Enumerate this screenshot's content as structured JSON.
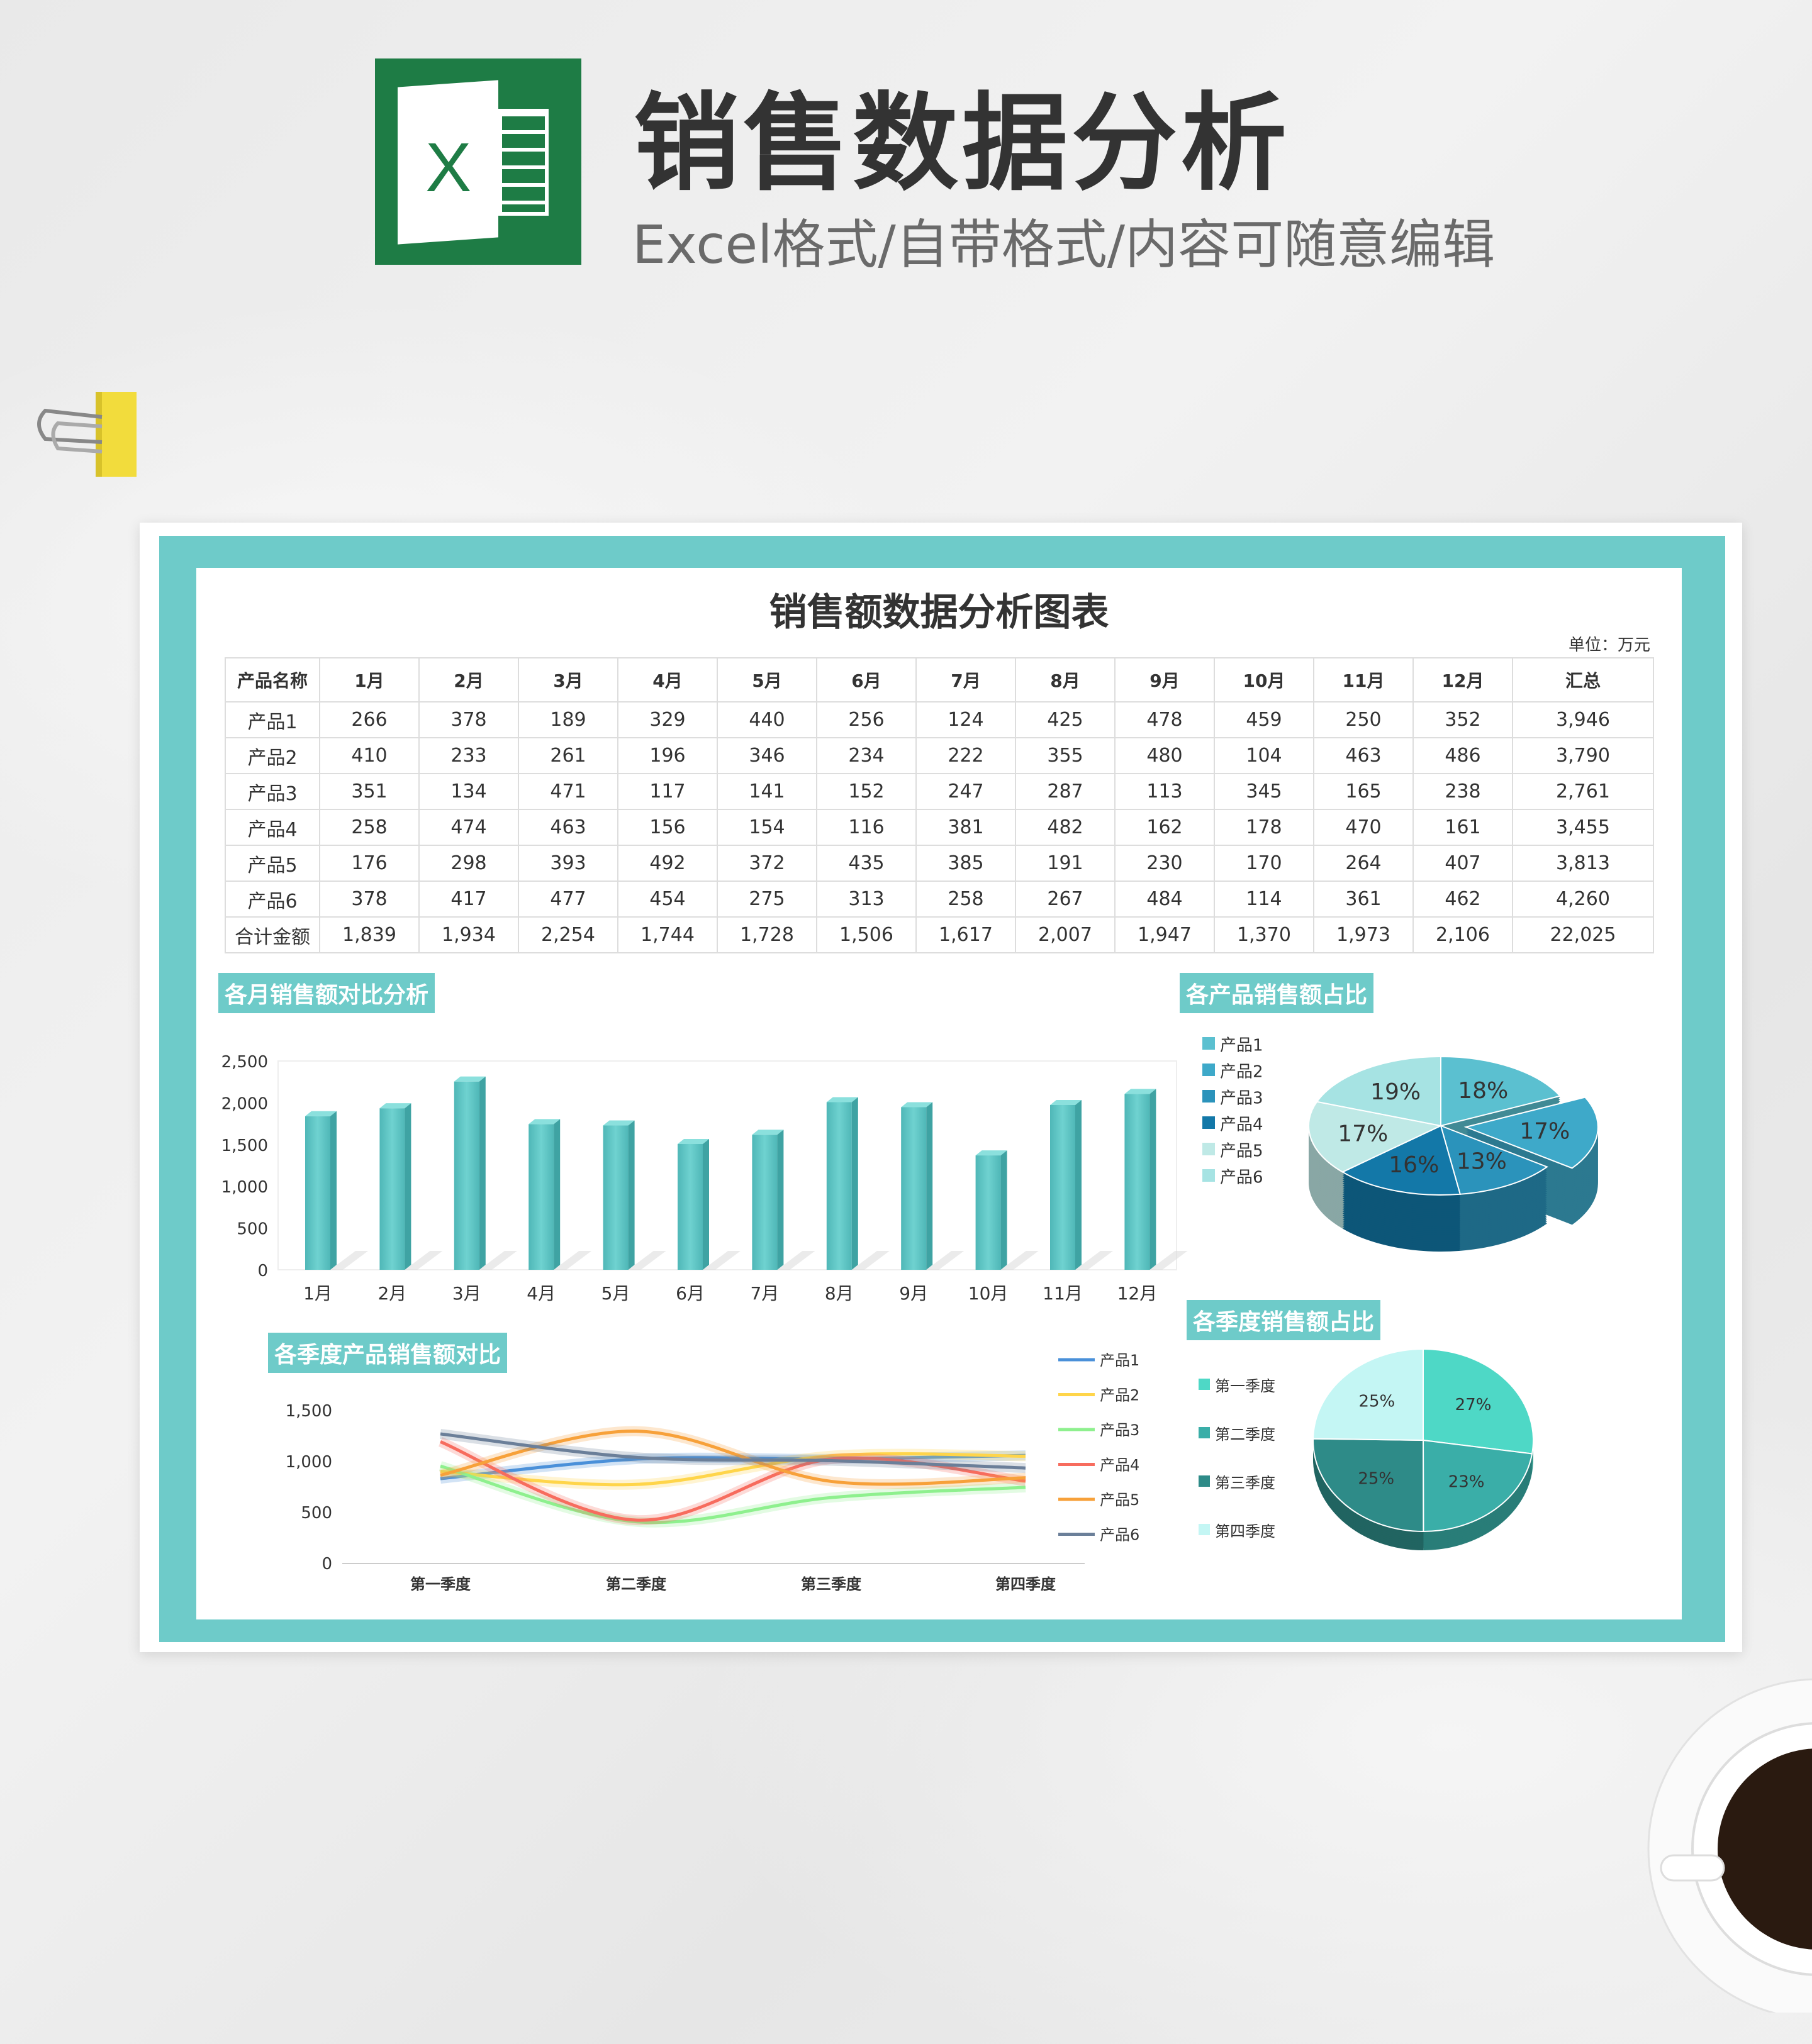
{
  "header": {
    "title": "销售数据分析",
    "subtitle": "Excel格式/自带格式/内容可随意编辑",
    "logo_letter": "X"
  },
  "sheet": {
    "title": "销售额数据分析图表",
    "unit": "单位：万元",
    "columns": [
      "产品名称",
      "1月",
      "2月",
      "3月",
      "4月",
      "5月",
      "6月",
      "7月",
      "8月",
      "9月",
      "10月",
      "11月",
      "12月",
      "汇总"
    ],
    "rows": [
      [
        "产品1",
        "266",
        "378",
        "189",
        "329",
        "440",
        "256",
        "124",
        "425",
        "478",
        "459",
        "250",
        "352",
        "3,946"
      ],
      [
        "产品2",
        "410",
        "233",
        "261",
        "196",
        "346",
        "234",
        "222",
        "355",
        "480",
        "104",
        "463",
        "486",
        "3,790"
      ],
      [
        "产品3",
        "351",
        "134",
        "471",
        "117",
        "141",
        "152",
        "247",
        "287",
        "113",
        "345",
        "165",
        "238",
        "2,761"
      ],
      [
        "产品4",
        "258",
        "474",
        "463",
        "156",
        "154",
        "116",
        "381",
        "482",
        "162",
        "178",
        "470",
        "161",
        "3,455"
      ],
      [
        "产品5",
        "176",
        "298",
        "393",
        "492",
        "372",
        "435",
        "385",
        "191",
        "230",
        "170",
        "264",
        "407",
        "3,813"
      ],
      [
        "产品6",
        "378",
        "417",
        "477",
        "454",
        "275",
        "313",
        "258",
        "267",
        "484",
        "114",
        "361",
        "462",
        "4,260"
      ],
      [
        "合计金额",
        "1,839",
        "1,934",
        "2,254",
        "1,744",
        "1,728",
        "1,506",
        "1,617",
        "2,007",
        "1,947",
        "1,370",
        "1,973",
        "2,106",
        "22,025"
      ]
    ]
  },
  "colors": {
    "accent": "#6ecbc9",
    "bar": "#5cc4c4"
  },
  "chart_data": [
    {
      "type": "bar",
      "title": "各月销售额对比分析",
      "categories": [
        "1月",
        "2月",
        "3月",
        "4月",
        "5月",
        "6月",
        "7月",
        "8月",
        "9月",
        "10月",
        "11月",
        "12月"
      ],
      "values": [
        1839,
        1934,
        2254,
        1744,
        1728,
        1506,
        1617,
        2007,
        1947,
        1370,
        1973,
        2106
      ],
      "ylim": [
        0,
        2500
      ],
      "yticks": [
        "0",
        "500",
        "1,000",
        "1,500",
        "2,000",
        "2,500"
      ],
      "style": "3d-column"
    },
    {
      "type": "pie",
      "title": "各产品销售额占比",
      "categories": [
        "产品1",
        "产品2",
        "产品3",
        "产品4",
        "产品5",
        "产品6"
      ],
      "values": [
        3946,
        3790,
        2761,
        3455,
        3813,
        4260
      ],
      "labels": [
        "18%",
        "17%",
        "13%",
        "16%",
        "17%",
        "19%"
      ],
      "colors": [
        "#5bc0d0",
        "#3ea9c9",
        "#2b93bb",
        "#1378a8",
        "#bfe9e6",
        "#a6e3e3"
      ],
      "legend": "left",
      "exploded": "产品2"
    },
    {
      "type": "pie",
      "title": "各季度销售额占比",
      "categories": [
        "第一季度",
        "第二季度",
        "第三季度",
        "第四季度"
      ],
      "values": [
        6027,
        4978,
        5571,
        5449
      ],
      "labels": [
        "27%",
        "23%",
        "25%",
        "25%"
      ],
      "colors": [
        "#4ed8c6",
        "#3aaea8",
        "#2e8b88",
        "#c4f6f4"
      ],
      "legend": "left"
    },
    {
      "type": "line",
      "title": "各季度产品销售额对比",
      "categories": [
        "第一季度",
        "第二季度",
        "第三季度",
        "第四季度"
      ],
      "ylim": [
        0,
        1500
      ],
      "yticks": [
        "0",
        "500",
        "1,000",
        "1,500"
      ],
      "legend": "right",
      "smooth": true,
      "series": [
        {
          "name": "产品1",
          "values": [
            833,
            1025,
            1027,
            1061
          ],
          "color": "#4a90d9"
        },
        {
          "name": "产品2",
          "values": [
            904,
            776,
            1057,
            1053
          ],
          "color": "#ffd54a"
        },
        {
          "name": "产品3",
          "values": [
            956,
            410,
            647,
            748
          ],
          "color": "#8ef08e"
        },
        {
          "name": "产品4",
          "values": [
            1195,
            426,
            1025,
            809
          ],
          "color": "#f76c5e"
        },
        {
          "name": "产品5",
          "values": [
            867,
            1299,
            806,
            841
          ],
          "color": "#f7a13a"
        },
        {
          "name": "产品6",
          "values": [
            1272,
            1042,
            1009,
            937
          ],
          "color": "#6b7f99"
        }
      ]
    }
  ]
}
